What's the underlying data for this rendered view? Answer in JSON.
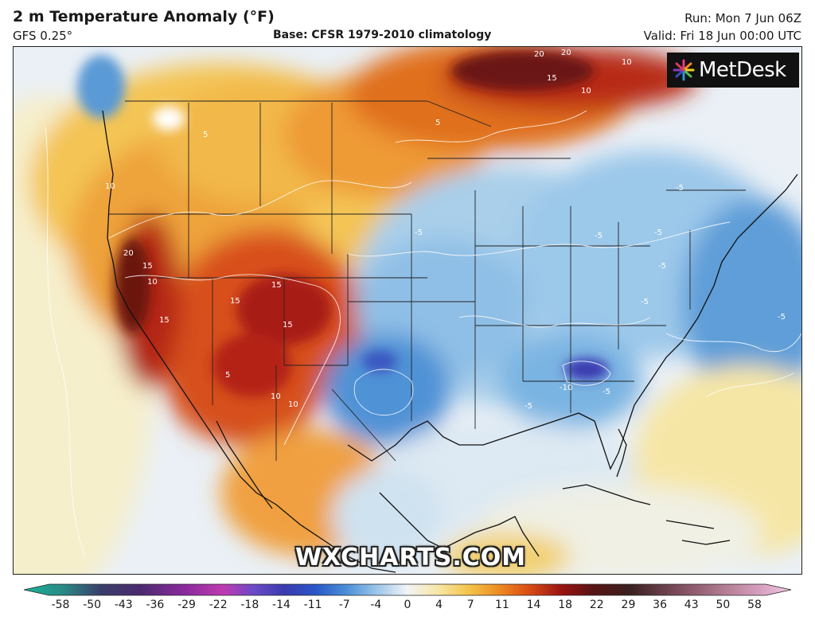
{
  "header": {
    "title": "2 m Temperature Anomaly (°F)",
    "model": "GFS 0.25°",
    "base": "Base: CFSR 1979-2010 climatology",
    "run": "Run: Mon 7 Jun 06Z",
    "valid": "Valid: Fri 18 Jun 00:00 UTC"
  },
  "logo": {
    "text": "MetDesk",
    "icon": "metdesk-pinwheel-icon"
  },
  "watermark": "WXCHARTS.COM",
  "colorbar": {
    "ticks": [
      "-58",
      "-50",
      "-43",
      "-36",
      "-29",
      "-22",
      "-18",
      "-14",
      "-11",
      "-7",
      "-4",
      "0",
      "4",
      "7",
      "11",
      "14",
      "18",
      "22",
      "29",
      "36",
      "43",
      "50",
      "58"
    ],
    "colors": [
      "#18b49a",
      "#2a8a86",
      "#3a3f6a",
      "#4a2a6e",
      "#7a2a8e",
      "#b03aa8",
      "#7a4ac0",
      "#3a3ab0",
      "#2a56c8",
      "#3f86d6",
      "#8fc1e8",
      "#eef3f7",
      "#f7e6a4",
      "#f4c44a",
      "#ee8a22",
      "#d84a14",
      "#9a1410",
      "#5a1414",
      "#3a2020",
      "#7a4a5a",
      "#b07a90",
      "#d8a0c0",
      "#f0c8e0"
    ]
  },
  "contour_labels": [
    {
      "id": "w1",
      "text": "5"
    },
    {
      "id": "w2",
      "text": "10"
    },
    {
      "id": "w3",
      "text": "20"
    },
    {
      "id": "w4",
      "text": "15"
    },
    {
      "id": "w5",
      "text": "10"
    },
    {
      "id": "w6",
      "text": "15"
    },
    {
      "id": "w7",
      "text": "15"
    },
    {
      "id": "w8",
      "text": "15"
    },
    {
      "id": "w9",
      "text": "10"
    },
    {
      "id": "w10",
      "text": "5"
    },
    {
      "id": "w11",
      "text": "10"
    },
    {
      "id": "w12",
      "text": "15"
    },
    {
      "id": "n1",
      "text": "20"
    },
    {
      "id": "n2",
      "text": "20"
    },
    {
      "id": "n3",
      "text": "15"
    },
    {
      "id": "n4",
      "text": "10"
    },
    {
      "id": "n5",
      "text": "10"
    },
    {
      "id": "n6",
      "text": "5"
    },
    {
      "id": "c1",
      "text": "-5"
    },
    {
      "id": "c2",
      "text": "-5"
    },
    {
      "id": "c3",
      "text": "-5"
    },
    {
      "id": "c4",
      "text": "-5"
    },
    {
      "id": "c5",
      "text": "-10"
    },
    {
      "id": "c6",
      "text": "-5"
    },
    {
      "id": "c7",
      "text": "-5"
    },
    {
      "id": "c8",
      "text": "-5"
    },
    {
      "id": "c9",
      "text": "-5"
    },
    {
      "id": "c10",
      "text": "-5"
    }
  ]
}
